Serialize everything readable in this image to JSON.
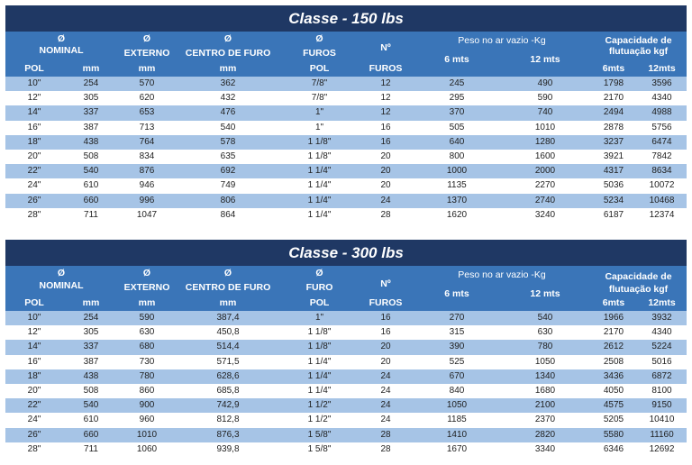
{
  "tables": [
    {
      "title": "Classe - 150 lbs",
      "headers": {
        "diam_symbol": "Ø",
        "nominal": "NOMINAL",
        "externo": "EXTERNO",
        "centro": "CENTRO DE FURO",
        "furos_label": "FUROS",
        "no": "Nº",
        "peso": "Peso no ar vazio -Kg",
        "capacidade": "Capacidade de",
        "flutuacao": "flutuação kgf",
        "pol": "POL",
        "mm": "mm",
        "furos_pol": "POL",
        "furos_count": "FUROS",
        "six": "6 mts",
        "twelve": "12 mts",
        "six_cap": "6mts",
        "twelve_cap": "12mts"
      },
      "rows": [
        [
          "10\"",
          "254",
          "570",
          "362",
          "7/8\"",
          "12",
          "245",
          "490",
          "1798",
          "3596"
        ],
        [
          "12\"",
          "305",
          "620",
          "432",
          "7/8\"",
          "12",
          "295",
          "590",
          "2170",
          "4340"
        ],
        [
          "14\"",
          "337",
          "653",
          "476",
          "1\"",
          "12",
          "370",
          "740",
          "2494",
          "4988"
        ],
        [
          "16\"",
          "387",
          "713",
          "540",
          "1\"",
          "16",
          "505",
          "1010",
          "2878",
          "5756"
        ],
        [
          "18\"",
          "438",
          "764",
          "578",
          "1 1/8\"",
          "16",
          "640",
          "1280",
          "3237",
          "6474"
        ],
        [
          "20\"",
          "508",
          "834",
          "635",
          "1 1/8\"",
          "20",
          "800",
          "1600",
          "3921",
          "7842"
        ],
        [
          "22\"",
          "540",
          "876",
          "692",
          "1 1/4\"",
          "20",
          "1000",
          "2000",
          "4317",
          "8634"
        ],
        [
          "24\"",
          "610",
          "946",
          "749",
          "1 1/4\"",
          "20",
          "1135",
          "2270",
          "5036",
          "10072"
        ],
        [
          "26\"",
          "660",
          "996",
          "806",
          "1 1/4\"",
          "24",
          "1370",
          "2740",
          "5234",
          "10468"
        ],
        [
          "28\"",
          "711",
          "1047",
          "864",
          "1 1/4\"",
          "28",
          "1620",
          "3240",
          "6187",
          "12374"
        ]
      ]
    },
    {
      "title": "Classe  -  300 lbs",
      "headers": {
        "diam_symbol": "Ø",
        "nominal": "NOMINAL",
        "externo": "EXTERNO",
        "centro": "CENTRO DE FURO",
        "furos_label": "FURO",
        "no": "Nº",
        "peso": "Peso no  ar vazio -Kg",
        "capacidade": "Capacidade de",
        "flutuacao": "flutuação kgf",
        "pol": "POL",
        "mm": "mm",
        "furos_pol": "POL",
        "furos_count": "FUROS",
        "six": "6 mts",
        "twelve": "12 mts",
        "six_cap": "6mts",
        "twelve_cap": "12mts"
      },
      "rows": [
        [
          "10\"",
          "254",
          "590",
          "387,4",
          "1\"",
          "16",
          "270",
          "540",
          "1966",
          "3932"
        ],
        [
          "12\"",
          "305",
          "630",
          "450,8",
          "1 1/8\"",
          "16",
          "315",
          "630",
          "2170",
          "4340"
        ],
        [
          "14\"",
          "337",
          "680",
          "514,4",
          "1 1/8\"",
          "20",
          "390",
          "780",
          "2612",
          "5224"
        ],
        [
          "16\"",
          "387",
          "730",
          "571,5",
          "1 1/4\"",
          "20",
          "525",
          "1050",
          "2508",
          "5016"
        ],
        [
          "18\"",
          "438",
          "780",
          "628,6",
          "1 1/4\"",
          "24",
          "670",
          "1340",
          "3436",
          "6872"
        ],
        [
          "20\"",
          "508",
          "860",
          "685,8",
          "1  1/4\"",
          "24",
          "840",
          "1680",
          "4050",
          "8100"
        ],
        [
          "22\"",
          "540",
          "900",
          "742,9",
          "1  1/2\"",
          "24",
          "1050",
          "2100",
          "4575",
          "9150"
        ],
        [
          "24\"",
          "610",
          "960",
          "812,8",
          "1  1/2\"",
          "24",
          "1185",
          "2370",
          "5205",
          "10410"
        ],
        [
          "26\"",
          "660",
          "1010",
          "876,3",
          "1  5/8\"",
          "28",
          "1410",
          "2820",
          "5580",
          "11160"
        ],
        [
          "28\"",
          "711",
          "1060",
          "939,8",
          "1  5/8\"",
          "28",
          "1670",
          "3340",
          "6346",
          "12692"
        ]
      ]
    }
  ]
}
